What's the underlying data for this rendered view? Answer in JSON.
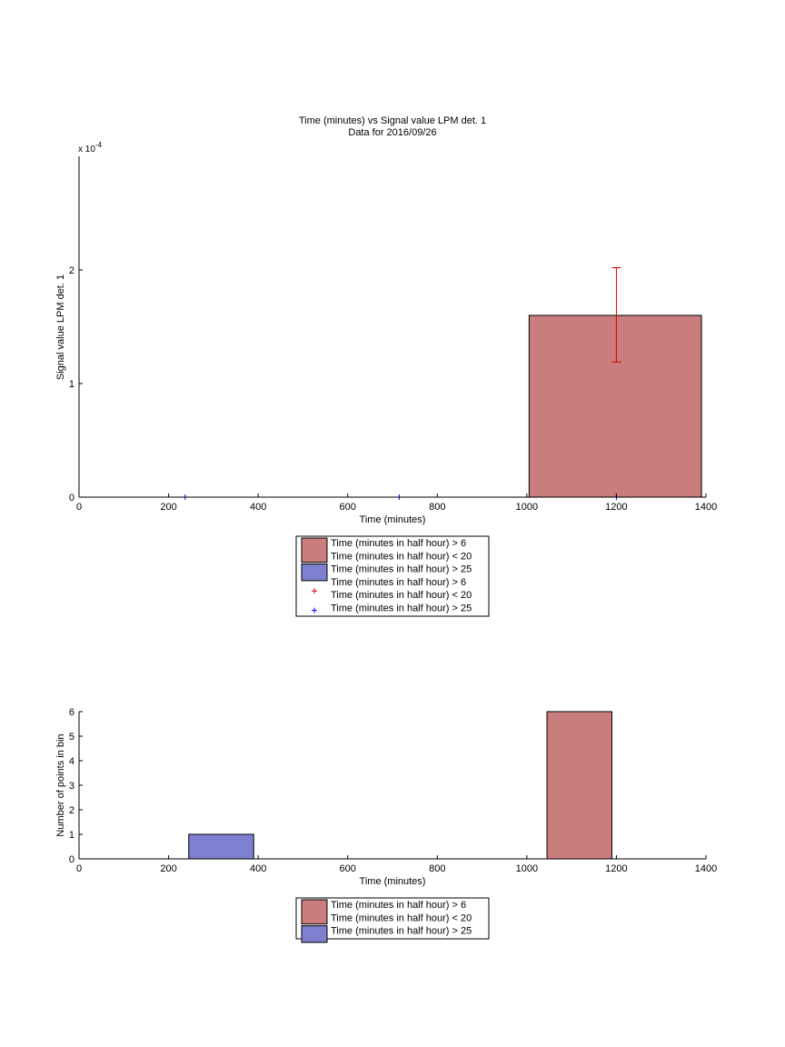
{
  "colors": {
    "red_bar": "#c97d7d",
    "blue_bar": "#7f7fcf",
    "error_bar": "#e00000",
    "blue_marker": "#0000ff",
    "axis": "#000000"
  },
  "chart_data": [
    {
      "type": "bar",
      "title": "Time (minutes) vs Signal value LPM det. 1",
      "subtitle": "Data for 2016/09/26",
      "xlabel": "Time (minutes)",
      "ylabel": "Signal value LPM det. 1",
      "exponent_label": "x 10",
      "exponent_power": "-4",
      "xlim": [
        0,
        1400
      ],
      "ylim": [
        0,
        3
      ],
      "y_scale_note": "values in units of 1e-4",
      "xticks": [
        "0",
        "200",
        "400",
        "600",
        "800",
        "1000",
        "1200",
        "1400"
      ],
      "yticks": [
        "0",
        "1",
        "2"
      ],
      "bars": [
        {
          "series": "Time (minutes in half hour) > 6\nTime (minutes in half hour) < 20",
          "x_start": 1005,
          "x_end": 1390,
          "value": 1.6,
          "color": "#c97d7d"
        }
      ],
      "error_bars": [
        {
          "x": 1200,
          "center": 1.6,
          "low": 1.19,
          "high": 2.02,
          "color": "#e00000"
        }
      ],
      "markers": [
        {
          "x": 237,
          "y": 0,
          "color": "#0000ff"
        },
        {
          "x": 715,
          "y": 0,
          "color": "#0000ff"
        },
        {
          "x": 1200,
          "y": 0,
          "color": "#0000ff"
        }
      ],
      "legend": [
        {
          "kind": "patch",
          "color": "#c97d7d",
          "lines": [
            "Time (minutes in half hour) > 6",
            "Time (minutes in half hour) < 20"
          ]
        },
        {
          "kind": "patch",
          "color": "#7f7fcf",
          "lines": [
            "Time (minutes in half hour) > 25"
          ]
        },
        {
          "kind": "marker",
          "color": "#e00000",
          "lines": [
            "Time (minutes in half hour) > 6",
            "Time (minutes in half hour) < 20"
          ]
        },
        {
          "kind": "marker",
          "color": "#0000ff",
          "lines": [
            "Time (minutes in half hour) > 25"
          ]
        }
      ],
      "legend_position": "below"
    },
    {
      "type": "bar",
      "title": "",
      "xlabel": "Time (minutes)",
      "ylabel": "Number of points in bin",
      "xlim": [
        0,
        1400
      ],
      "ylim": [
        0,
        6
      ],
      "xticks": [
        "0",
        "200",
        "400",
        "600",
        "800",
        "1000",
        "1200",
        "1400"
      ],
      "yticks": [
        "0",
        "1",
        "2",
        "3",
        "4",
        "5",
        "6"
      ],
      "bars": [
        {
          "series": "Time (minutes in half hour) > 25",
          "x_start": 245,
          "x_end": 390,
          "value": 1,
          "color": "#7f7fcf"
        },
        {
          "series": "Time (minutes in half hour) > 6\nTime (minutes in half hour) < 20",
          "x_start": 1045,
          "x_end": 1190,
          "value": 6,
          "color": "#c97d7d"
        }
      ],
      "legend": [
        {
          "kind": "patch",
          "color": "#c97d7d",
          "lines": [
            "Time (minutes in half hour) > 6",
            "Time (minutes in half hour) < 20"
          ]
        },
        {
          "kind": "patch",
          "color": "#7f7fcf",
          "lines": [
            "Time (minutes in half hour) > 25"
          ]
        }
      ],
      "legend_position": "below"
    }
  ]
}
